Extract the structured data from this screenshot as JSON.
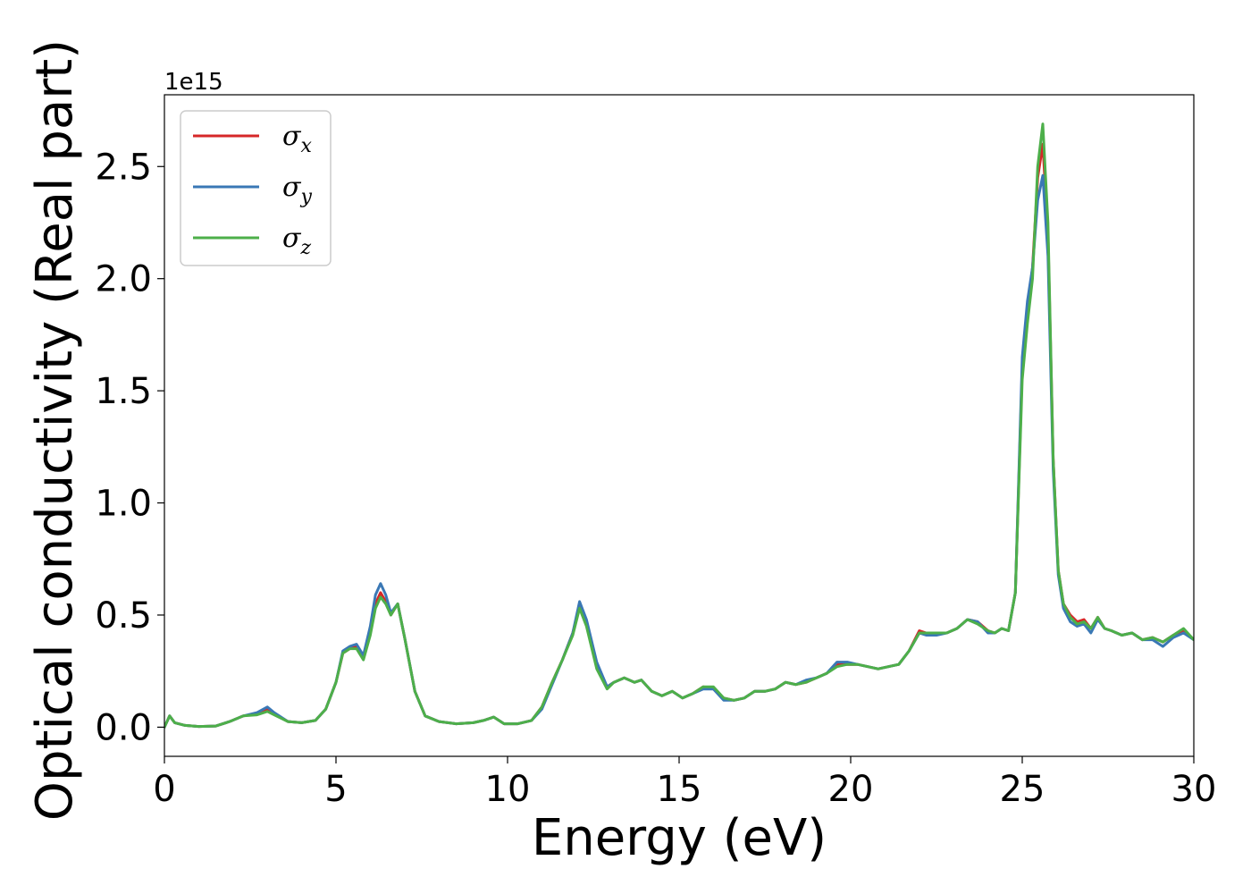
{
  "chart_data": {
    "type": "line",
    "xlabel": "Energy (eV)",
    "ylabel": "Optical conductivity (Real part)",
    "y_offset_label": "1e15",
    "xlim": [
      0,
      30
    ],
    "ylim": [
      -0.13,
      2.82
    ],
    "x_ticks": [
      0,
      5,
      10,
      15,
      20,
      25,
      30
    ],
    "x_tick_labels": [
      "0",
      "5",
      "10",
      "15",
      "20",
      "25",
      "30"
    ],
    "y_ticks": [
      0.0,
      0.5,
      1.0,
      1.5,
      2.0,
      2.5
    ],
    "y_tick_labels": [
      "0.0",
      "0.5",
      "1.0",
      "1.5",
      "2.0",
      "2.5"
    ],
    "grid": false,
    "legend_position": "top-left",
    "x": [
      0,
      0.15,
      0.3,
      0.6,
      1.0,
      1.5,
      1.9,
      2.3,
      2.7,
      3.0,
      3.2,
      3.6,
      4.0,
      4.4,
      4.7,
      5.0,
      5.2,
      5.4,
      5.6,
      5.8,
      6.0,
      6.15,
      6.3,
      6.45,
      6.6,
      6.8,
      7.0,
      7.3,
      7.6,
      8.0,
      8.5,
      9.0,
      9.3,
      9.6,
      9.9,
      10.3,
      10.7,
      11.0,
      11.3,
      11.6,
      11.9,
      12.1,
      12.3,
      12.6,
      12.9,
      13.1,
      13.4,
      13.7,
      13.9,
      14.2,
      14.5,
      14.8,
      15.1,
      15.4,
      15.7,
      16.0,
      16.3,
      16.6,
      16.9,
      17.2,
      17.5,
      17.8,
      18.1,
      18.4,
      18.7,
      19.0,
      19.3,
      19.6,
      19.9,
      20.2,
      20.5,
      20.8,
      21.1,
      21.4,
      21.7,
      22.0,
      22.2,
      22.5,
      22.8,
      23.1,
      23.4,
      23.7,
      24.0,
      24.2,
      24.4,
      24.6,
      24.8,
      25.0,
      25.15,
      25.3,
      25.45,
      25.6,
      25.75,
      25.9,
      26.05,
      26.2,
      26.4,
      26.6,
      26.8,
      27.0,
      27.2,
      27.4,
      27.6,
      27.9,
      28.2,
      28.5,
      28.8,
      29.1,
      29.4,
      29.7,
      30.0
    ],
    "series": [
      {
        "name": "σx",
        "color": "#d62728",
        "values": [
          0.0,
          0.05,
          0.02,
          0.008,
          0.003,
          0.005,
          0.025,
          0.05,
          0.06,
          0.08,
          0.06,
          0.025,
          0.02,
          0.03,
          0.08,
          0.2,
          0.33,
          0.35,
          0.36,
          0.31,
          0.42,
          0.55,
          0.6,
          0.56,
          0.5,
          0.55,
          0.4,
          0.16,
          0.05,
          0.025,
          0.015,
          0.02,
          0.03,
          0.045,
          0.015,
          0.015,
          0.03,
          0.09,
          0.2,
          0.3,
          0.42,
          0.54,
          0.46,
          0.27,
          0.18,
          0.2,
          0.22,
          0.2,
          0.21,
          0.16,
          0.14,
          0.16,
          0.13,
          0.15,
          0.18,
          0.17,
          0.13,
          0.12,
          0.13,
          0.16,
          0.16,
          0.17,
          0.2,
          0.19,
          0.2,
          0.22,
          0.24,
          0.28,
          0.28,
          0.28,
          0.27,
          0.26,
          0.27,
          0.28,
          0.34,
          0.43,
          0.42,
          0.42,
          0.42,
          0.44,
          0.48,
          0.47,
          0.43,
          0.42,
          0.44,
          0.43,
          0.6,
          1.6,
          1.85,
          2.05,
          2.45,
          2.6,
          2.2,
          1.2,
          0.7,
          0.55,
          0.5,
          0.47,
          0.48,
          0.44,
          0.49,
          0.44,
          0.43,
          0.41,
          0.42,
          0.39,
          0.4,
          0.38,
          0.41,
          0.43,
          0.39
        ]
      },
      {
        "name": "σy",
        "color": "#3a78b5",
        "values": [
          0.0,
          0.05,
          0.02,
          0.008,
          0.003,
          0.005,
          0.025,
          0.05,
          0.065,
          0.09,
          0.065,
          0.025,
          0.02,
          0.03,
          0.08,
          0.2,
          0.34,
          0.36,
          0.37,
          0.32,
          0.45,
          0.59,
          0.64,
          0.59,
          0.51,
          0.55,
          0.4,
          0.16,
          0.05,
          0.025,
          0.015,
          0.02,
          0.03,
          0.045,
          0.015,
          0.015,
          0.03,
          0.08,
          0.19,
          0.3,
          0.42,
          0.56,
          0.48,
          0.29,
          0.18,
          0.2,
          0.22,
          0.2,
          0.21,
          0.16,
          0.14,
          0.16,
          0.13,
          0.15,
          0.17,
          0.17,
          0.12,
          0.12,
          0.13,
          0.16,
          0.16,
          0.17,
          0.2,
          0.19,
          0.21,
          0.22,
          0.24,
          0.29,
          0.29,
          0.28,
          0.27,
          0.26,
          0.27,
          0.28,
          0.34,
          0.42,
          0.41,
          0.41,
          0.42,
          0.44,
          0.48,
          0.47,
          0.42,
          0.42,
          0.44,
          0.43,
          0.6,
          1.65,
          1.9,
          2.05,
          2.35,
          2.46,
          2.1,
          1.15,
          0.68,
          0.53,
          0.47,
          0.45,
          0.46,
          0.42,
          0.48,
          0.44,
          0.43,
          0.41,
          0.42,
          0.39,
          0.39,
          0.36,
          0.4,
          0.42,
          0.39
        ]
      },
      {
        "name": "σz",
        "color": "#4daf4a",
        "values": [
          0.0,
          0.05,
          0.02,
          0.008,
          0.003,
          0.005,
          0.025,
          0.05,
          0.055,
          0.07,
          0.055,
          0.025,
          0.02,
          0.03,
          0.08,
          0.2,
          0.33,
          0.35,
          0.35,
          0.3,
          0.41,
          0.53,
          0.58,
          0.55,
          0.5,
          0.55,
          0.4,
          0.16,
          0.05,
          0.025,
          0.015,
          0.02,
          0.03,
          0.045,
          0.015,
          0.015,
          0.03,
          0.09,
          0.2,
          0.3,
          0.41,
          0.53,
          0.45,
          0.26,
          0.17,
          0.2,
          0.22,
          0.2,
          0.21,
          0.16,
          0.14,
          0.16,
          0.13,
          0.15,
          0.18,
          0.18,
          0.13,
          0.12,
          0.13,
          0.16,
          0.16,
          0.17,
          0.2,
          0.19,
          0.2,
          0.22,
          0.24,
          0.27,
          0.28,
          0.28,
          0.27,
          0.26,
          0.27,
          0.28,
          0.34,
          0.42,
          0.42,
          0.42,
          0.42,
          0.44,
          0.48,
          0.46,
          0.43,
          0.42,
          0.44,
          0.43,
          0.6,
          1.55,
          1.8,
          2.0,
          2.5,
          2.69,
          2.25,
          1.2,
          0.7,
          0.55,
          0.49,
          0.46,
          0.47,
          0.44,
          0.49,
          0.44,
          0.43,
          0.41,
          0.42,
          0.39,
          0.4,
          0.38,
          0.41,
          0.44,
          0.39
        ]
      }
    ]
  }
}
